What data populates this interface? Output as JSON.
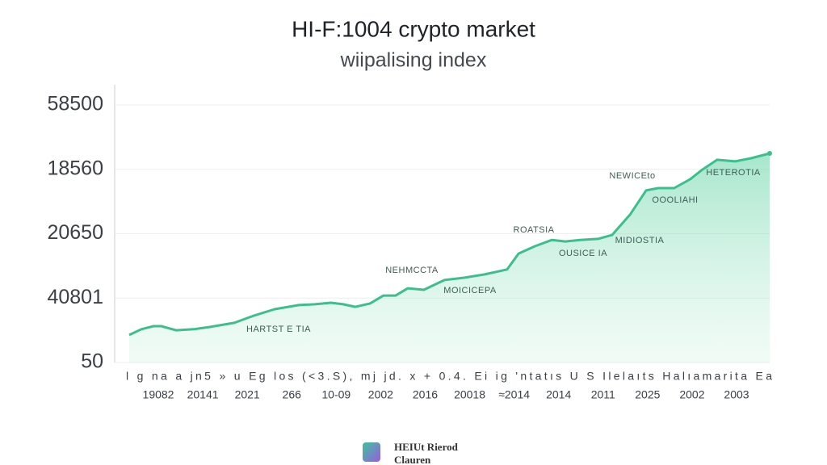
{
  "chart_data": {
    "type": "area",
    "title": "HI-F:1004 crypto market",
    "subtitle": "wiipalising index",
    "y_labels": [
      "58500",
      "18560",
      "20650",
      "40801",
      "50"
    ],
    "x_label_row": "l   g   na   a   jn5   »   u   Eg   los   (<3.S),   mj   jd.   x   +   0.4. Ei   ig 'ntatıs   U   S   Ilelaıts   Halıamarita   Ea",
    "categories": [
      "19082",
      "20141",
      "2021",
      "266",
      "10-09",
      "2002",
      "2016",
      "20018",
      "≈2014",
      "2014",
      "2011",
      "2025",
      "2002",
      "2003"
    ],
    "annotations": [
      "NEWICEto",
      "HETEROTIA",
      "OOOLIAHI",
      "ROATSIA",
      "MIDIOSTIA",
      "OUSICE IA",
      "NEHMCCTA",
      "MOICICEPA",
      "HARTST E TIA"
    ],
    "footer": [
      "HEIUt Rierod",
      "Clauren"
    ],
    "xlim": [
      0,
      100
    ],
    "ylim": [
      0,
      100
    ],
    "grid": true,
    "series": [
      {
        "color": "#3cbf8c",
        "x": [
          0,
          1.9,
          3.8,
          5.0,
          7.3,
          10.1,
          12.6,
          16.4,
          19.5,
          22.7,
          26.5,
          29.0,
          31.5,
          33.4,
          35.3,
          37.6,
          39.7,
          41.6,
          43.5,
          46.0,
          49.2,
          52.3,
          55.5,
          59.0,
          60.8,
          63.3,
          66.0,
          68.1,
          70.4,
          73.2,
          75.4,
          78.2,
          80.7,
          82.6,
          85.1,
          87.6,
          89.5,
          91.8,
          94.6,
          97.1,
          100
        ],
        "values": [
          10.7,
          12.9,
          14.1,
          14.1,
          12.5,
          12.9,
          13.8,
          15.4,
          18.2,
          20.7,
          22.3,
          22.6,
          23.2,
          22.6,
          21.6,
          22.9,
          26.0,
          26.0,
          28.8,
          28.2,
          32.0,
          32.9,
          34.2,
          36.1,
          42.3,
          45.1,
          47.6,
          47.0,
          47.6,
          48.0,
          49.5,
          57.4,
          66.8,
          67.7,
          67.7,
          71.2,
          74.9,
          78.7,
          78.1,
          79.3,
          81.2
        ]
      }
    ]
  }
}
